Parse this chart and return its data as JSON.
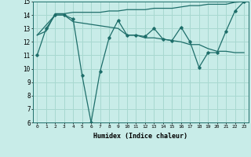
{
  "xlabel": "Humidex (Indice chaleur)",
  "ylabel": "",
  "xlim": [
    -0.5,
    23.5
  ],
  "ylim": [
    6,
    15
  ],
  "yticks": [
    6,
    7,
    8,
    9,
    10,
    11,
    12,
    13,
    14,
    15
  ],
  "xticks": [
    0,
    1,
    2,
    3,
    4,
    5,
    6,
    7,
    8,
    9,
    10,
    11,
    12,
    13,
    14,
    15,
    16,
    17,
    18,
    19,
    20,
    21,
    22,
    23
  ],
  "bg_color": "#c8ece8",
  "grid_color": "#a8d8d0",
  "line_color": "#1e6e6a",
  "line1_x": [
    0,
    1,
    2,
    3,
    4,
    5,
    6,
    7,
    8,
    9,
    10,
    11,
    12,
    13,
    14,
    15,
    16,
    17,
    18,
    19,
    20,
    21,
    22,
    23
  ],
  "line1_y": [
    11,
    13,
    14,
    14,
    13.7,
    9.5,
    6,
    9.8,
    12.3,
    13.6,
    12.5,
    12.5,
    12.4,
    13,
    12.2,
    12.1,
    13.1,
    12.0,
    10.1,
    11.2,
    11.2,
    12.8,
    14.3,
    15
  ],
  "line2_x": [
    0,
    1,
    2,
    3,
    4,
    5,
    6,
    7,
    8,
    9,
    10,
    11,
    12,
    13,
    14,
    15,
    16,
    17,
    18,
    19,
    20,
    21,
    22,
    23
  ],
  "line2_y": [
    12.5,
    12.8,
    14.1,
    14.1,
    14.2,
    14.2,
    14.2,
    14.2,
    14.3,
    14.3,
    14.4,
    14.4,
    14.4,
    14.5,
    14.5,
    14.5,
    14.6,
    14.7,
    14.7,
    14.8,
    14.8,
    14.8,
    14.95,
    15.0
  ],
  "line3_x": [
    0,
    2,
    3,
    4,
    9,
    10,
    11,
    12,
    13,
    14,
    15,
    16,
    17,
    18,
    19,
    20,
    21,
    22,
    23
  ],
  "line3_y": [
    12.5,
    14.0,
    14.0,
    13.5,
    13.0,
    12.5,
    12.5,
    12.3,
    12.3,
    12.2,
    12.1,
    12.0,
    11.8,
    11.8,
    11.5,
    11.3,
    11.3,
    11.2,
    11.2
  ]
}
